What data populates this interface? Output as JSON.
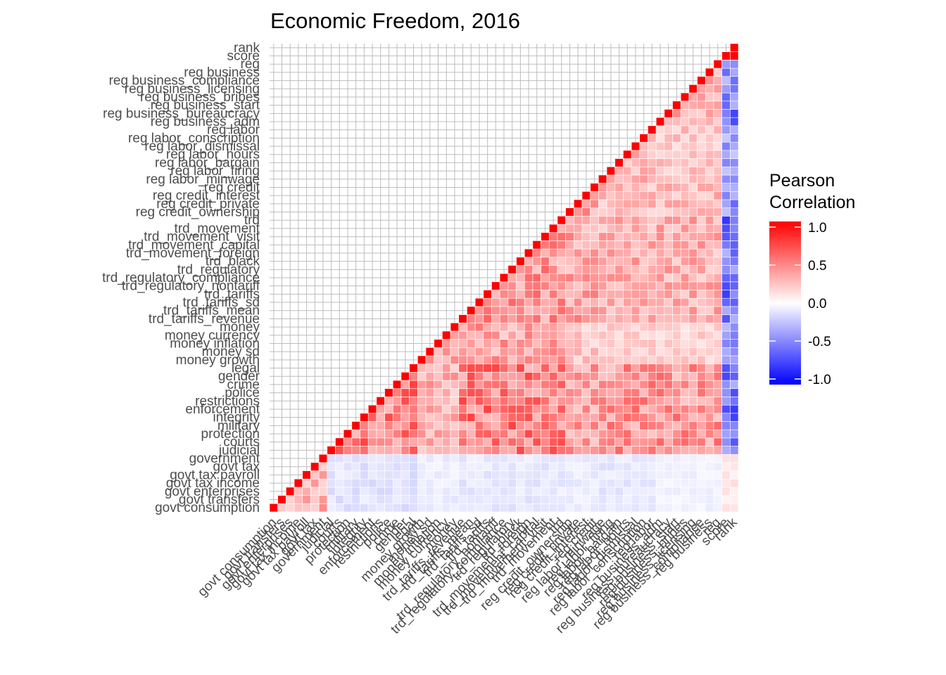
{
  "chart_data": {
    "type": "heatmap",
    "title": "Economic Freedom, 2016",
    "xlabel": "",
    "ylabel": "",
    "variables": [
      "govt consumption",
      "govt transfers",
      "govt enterprises",
      "govt tax income",
      "govt tax payroll",
      "govt tax",
      "government",
      "judicial",
      "courts",
      "protection",
      "military",
      "integrity",
      "enforcement",
      "restrictions",
      "police",
      "crime",
      "gender",
      "legal",
      "money growth",
      "money sd",
      "money inflation",
      "money currency",
      "money",
      "trd_tariffs_revenue",
      "trd_tariffs_mean",
      "trd_tariffs_sd",
      "trd_tariffs",
      "trd_regulatory_nontariff",
      "trd_regulatory_compliance",
      "trd_regulatory",
      "trd_black",
      "trd_movement_foreign",
      "trd_movement_capital",
      "trd_movement_visit",
      "trd_movement",
      "trd",
      "reg credit_ownership",
      "reg credit_private",
      "reg credit_interest",
      "reg credit",
      "reg labor_minwage",
      "reg labor_firing",
      "reg labor_bargain",
      "reg labor_hours",
      "reg labor_dismissal",
      "reg labor_conscription",
      "reg labor",
      "reg business_adm",
      "reg business_bureaucracy",
      "reg business_start",
      "reg business_bribes",
      "reg business_licensing",
      "reg business_compliance",
      "reg business",
      "reg",
      "score",
      "rank"
    ],
    "group_sizes": [
      7,
      11,
      5,
      13,
      4,
      7,
      8,
      2
    ],
    "group_signs": [
      [
        1,
        -1,
        -1,
        -1,
        -1,
        -1,
        -1,
        1
      ],
      [
        -1,
        1,
        1,
        1,
        1,
        1,
        1,
        -1
      ],
      [
        -1,
        1,
        1,
        1,
        1,
        1,
        1,
        -1
      ],
      [
        -1,
        1,
        1,
        1,
        1,
        1,
        1,
        -1
      ],
      [
        -1,
        1,
        1,
        1,
        1,
        1,
        1,
        -1
      ],
      [
        -1,
        1,
        1,
        1,
        1,
        1,
        1,
        -1
      ],
      [
        -1,
        1,
        1,
        1,
        1,
        1,
        1,
        -1
      ],
      [
        1,
        -1,
        -1,
        -1,
        -1,
        -1,
        -1,
        1
      ]
    ],
    "group_base": [
      [
        0.35,
        0.12,
        0.08,
        0.1,
        0.08,
        0.1,
        0.06,
        0.1
      ],
      [
        0.12,
        0.55,
        0.35,
        0.55,
        0.4,
        0.45,
        0.45,
        0.6
      ],
      [
        0.08,
        0.35,
        0.4,
        0.4,
        0.25,
        0.2,
        0.2,
        0.4
      ],
      [
        0.1,
        0.55,
        0.4,
        0.45,
        0.4,
        0.35,
        0.35,
        0.6
      ],
      [
        0.08,
        0.4,
        0.25,
        0.4,
        0.4,
        0.3,
        0.3,
        0.45
      ],
      [
        0.1,
        0.45,
        0.2,
        0.35,
        0.3,
        0.3,
        0.25,
        0.45
      ],
      [
        0.06,
        0.45,
        0.2,
        0.35,
        0.3,
        0.25,
        0.35,
        0.55
      ],
      [
        0.1,
        0.6,
        0.4,
        0.6,
        0.45,
        0.45,
        0.55,
        0.95
      ]
    ],
    "value_range": [
      -1,
      1
    ],
    "legend": {
      "title_lines": [
        "Pearson",
        "Correlation"
      ],
      "ticks": [
        "1.0",
        "0.5",
        "0.0",
        "-0.5",
        "-1.0"
      ],
      "tick_values": [
        1.0,
        0.5,
        0.0,
        -0.5,
        -1.0
      ],
      "position": "right"
    },
    "colors": {
      "low": "#0000FF",
      "mid": "#FFFFFF",
      "high": "#FF0000"
    },
    "grid": true,
    "layout": "upper-triangle"
  }
}
